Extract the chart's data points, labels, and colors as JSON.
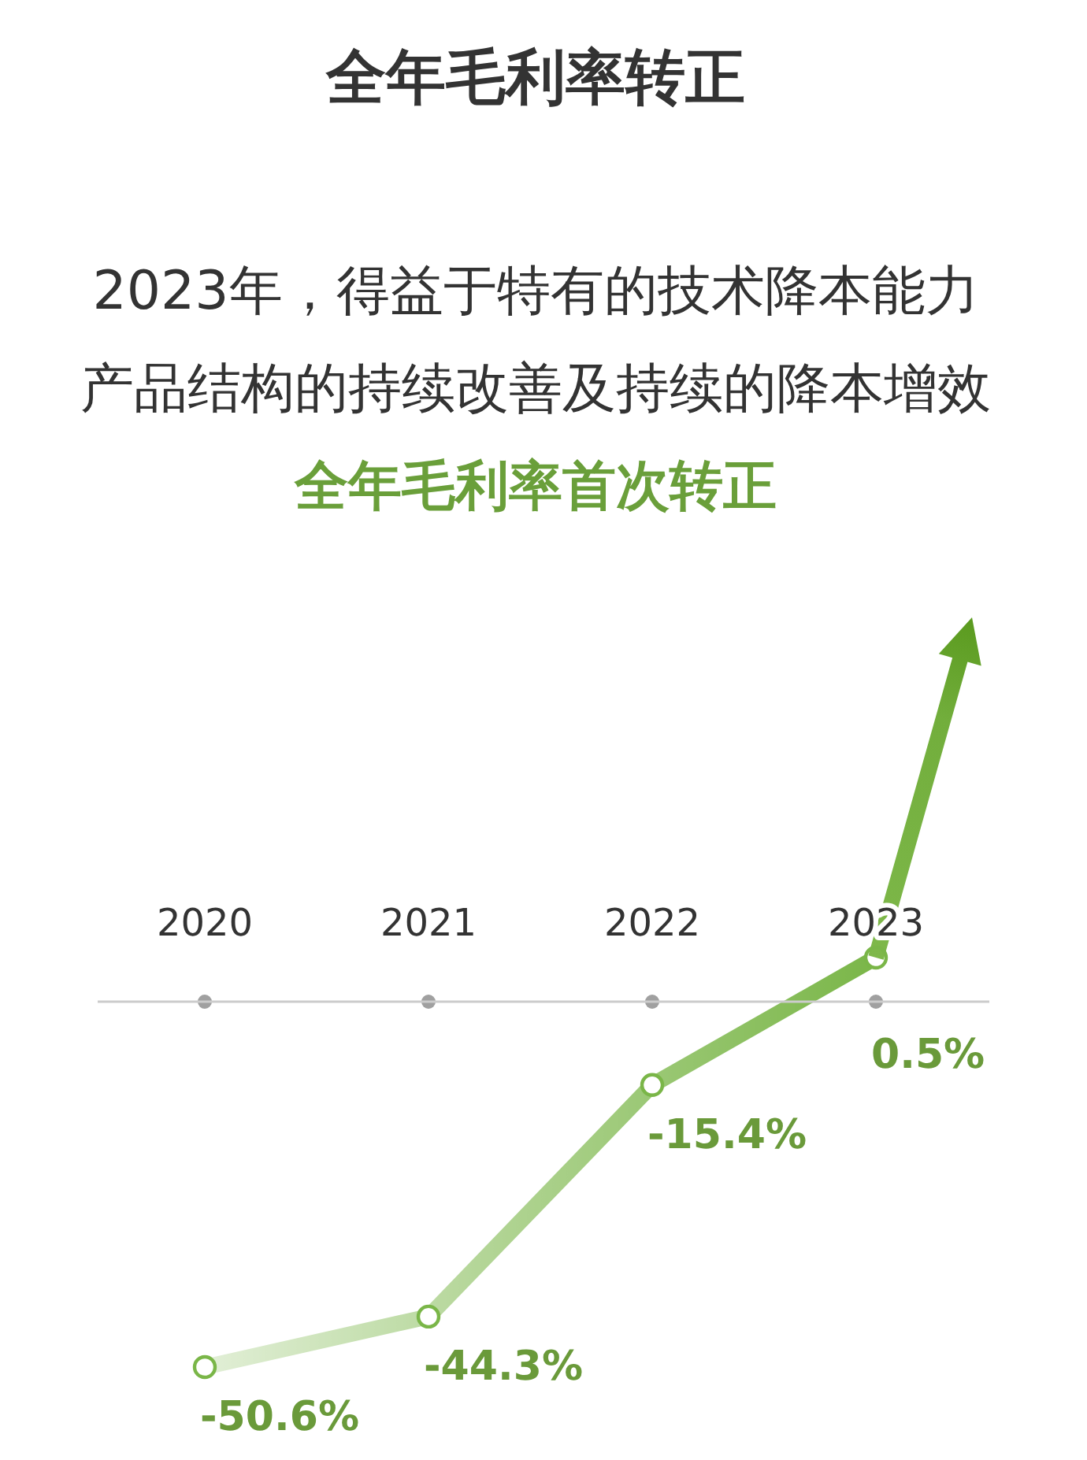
{
  "chart_data": {
    "type": "line",
    "title": "全年毛利率转正",
    "subtitle": "2023年，得益于特有的技术降本能力产品结构的持续改善及持续的降本增效",
    "annotations": [
      "全年毛利率首次转正"
    ],
    "categories": [
      "2020",
      "2021",
      "2022",
      "2023"
    ],
    "series": [
      {
        "color": "#7ab648",
        "values": [
          -50.6,
          -44.3,
          -15.4,
          0.5
        ],
        "value_labels": [
          "-50.6%",
          "-44.3%",
          "-15.4%",
          "0.5%"
        ]
      }
    ],
    "marker": "circle"
  }
}
